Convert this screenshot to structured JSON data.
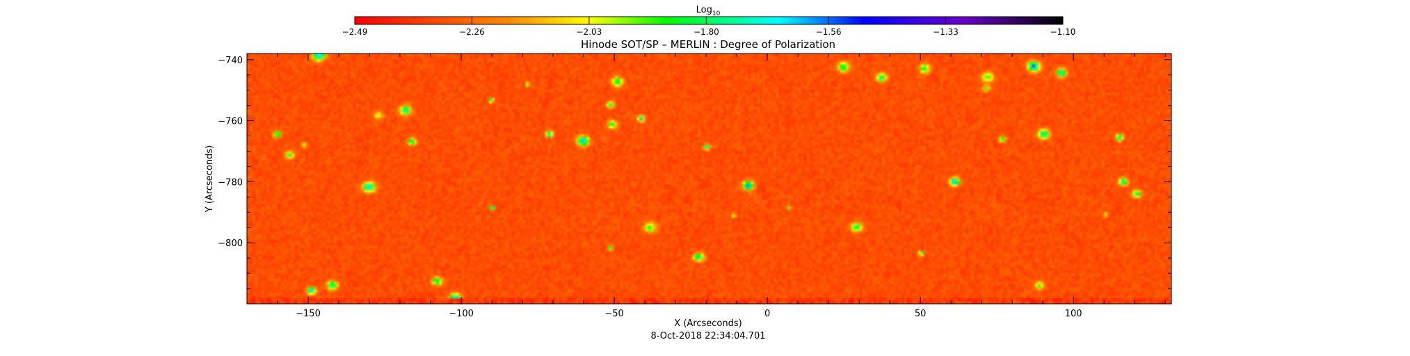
{
  "chart_data": {
    "type": "heatmap",
    "title": "Hinode SOT/SP – MERLIN : Degree of Polarization",
    "xlabel": "X (Arcseconds)",
    "ylabel": "Y (Arcseconds)",
    "xlim": [
      -170,
      132
    ],
    "ylim": [
      -820,
      -738
    ],
    "x_ticks": [
      -150,
      -100,
      -50,
      0,
      50,
      100
    ],
    "y_ticks": [
      -740,
      -760,
      -780,
      -800
    ],
    "x_tick_labels": [
      "−150",
      "−100",
      "−50",
      "0",
      "50",
      "100"
    ],
    "y_tick_labels": [
      "−740",
      "−760",
      "−780",
      "−800"
    ],
    "colorbar": {
      "label": "Log",
      "label_sub": "10",
      "range": [
        -2.49,
        -1.1
      ],
      "ticks": [
        -2.49,
        -2.26,
        -2.03,
        -1.8,
        -1.56,
        -1.33,
        -1.1
      ],
      "tick_labels": [
        "−2.49",
        "−2.26",
        "−2.03",
        "−1.80",
        "−1.56",
        "−1.33",
        "−1.10"
      ],
      "colormap": [
        "#ff0000",
        "#ff8800",
        "#ffff00",
        "#00ff00",
        "#00ffff",
        "#0000ff",
        "#8000ff",
        "#000000"
      ]
    },
    "timestamp": "8-Oct-2018 22:34:04.701",
    "dominant_value_range": [
      -2.45,
      -2.25
    ],
    "grid": false
  }
}
